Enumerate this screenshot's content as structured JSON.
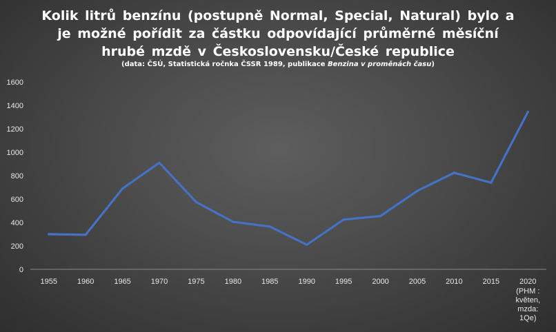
{
  "chart_data": {
    "type": "line",
    "title_lines": [
      "Kolik litrů benzínu (postupně Normal, Special, Natural) bylo a",
      "je možné pořídit za částku odpovídající průměrné měsíční",
      "hrubé mzdě v Československu/České republice"
    ],
    "subtitle": {
      "prefix": "(data: ČSÚ, Statistická ročnka ČSSR 1989, publikace ",
      "italic": "Benzina v proměnách času",
      "suffix": ")"
    },
    "categories": [
      "1955",
      "1960",
      "1965",
      "1970",
      "1975",
      "1980",
      "1985",
      "1990",
      "1995",
      "2000",
      "2005",
      "2010",
      "2015",
      "2020"
    ],
    "last_category_note": [
      "(PHM :",
      "květen,",
      "mzda:",
      "1Qe)"
    ],
    "values": [
      300,
      295,
      690,
      910,
      575,
      405,
      365,
      210,
      425,
      455,
      670,
      825,
      740,
      1345
    ],
    "ylim": [
      0,
      1600
    ],
    "yticks": [
      0,
      200,
      400,
      600,
      800,
      1000,
      1200,
      1400,
      1600
    ],
    "grid": false,
    "legend": "none",
    "line_color": "#4472c4"
  }
}
